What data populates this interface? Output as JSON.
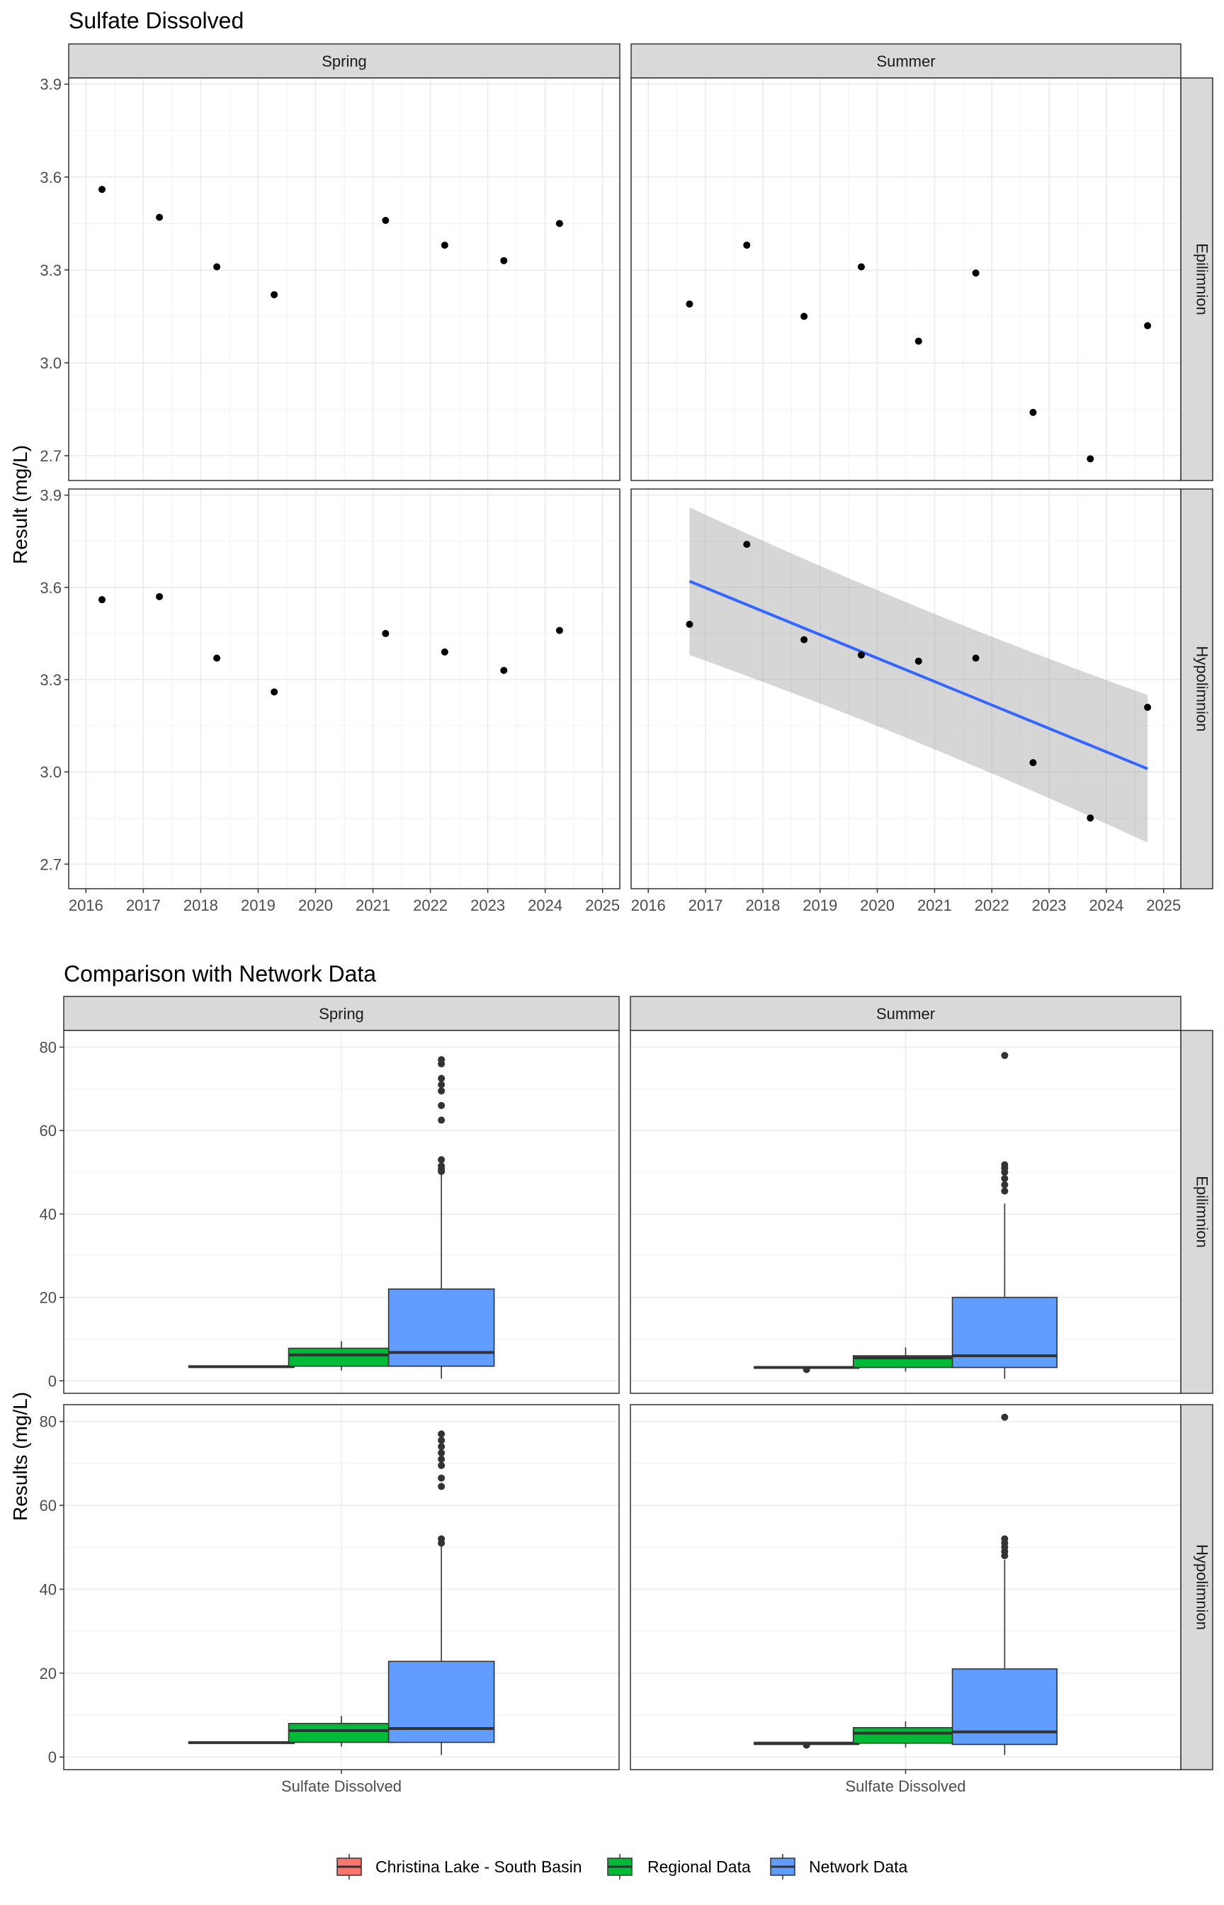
{
  "chart_data": [
    {
      "type": "scatter",
      "title": "Sulfate Dissolved",
      "ylabel": "Result (mg/L)",
      "xlabel": "",
      "ylim": [
        2.62,
        3.92
      ],
      "yticks": [
        2.7,
        3.0,
        3.3,
        3.6,
        3.9
      ],
      "ytick_labels": [
        "2.7",
        "3.0",
        "3.3",
        "3.6",
        "3.9"
      ],
      "xlim": [
        2015.7,
        2025.3
      ],
      "xticks": [
        2016,
        2017,
        2018,
        2019,
        2020,
        2021,
        2022,
        2023,
        2024,
        2025
      ],
      "xtick_labels": [
        "2016",
        "2017",
        "2018",
        "2019",
        "2020",
        "2021",
        "2022",
        "2023",
        "2024",
        "2025"
      ],
      "grid": true,
      "columns": [
        "Spring",
        "Summer"
      ],
      "rows": [
        "Epilimnion",
        "Hypolimnion"
      ],
      "panels": [
        {
          "column": "Spring",
          "row": "Epilimnion",
          "x": [
            2016.28,
            2017.28,
            2018.28,
            2019.28,
            2021.22,
            2022.25,
            2023.28,
            2024.25
          ],
          "y": [
            3.56,
            3.47,
            3.31,
            3.22,
            3.46,
            3.38,
            3.33,
            3.45
          ]
        },
        {
          "column": "Summer",
          "row": "Epilimnion",
          "x": [
            2016.72,
            2017.72,
            2018.72,
            2019.72,
            2020.72,
            2021.72,
            2022.72,
            2023.72,
            2024.72
          ],
          "y": [
            3.19,
            3.38,
            3.15,
            3.31,
            3.07,
            3.29,
            2.84,
            2.69,
            3.12
          ]
        },
        {
          "column": "Spring",
          "row": "Hypolimnion",
          "x": [
            2016.28,
            2017.28,
            2018.28,
            2019.28,
            2021.22,
            2022.25,
            2023.28,
            2024.25
          ],
          "y": [
            3.56,
            3.57,
            3.37,
            3.26,
            3.45,
            3.39,
            3.33,
            3.46
          ]
        },
        {
          "column": "Summer",
          "row": "Hypolimnion",
          "x": [
            2016.72,
            2017.72,
            2018.72,
            2019.72,
            2020.72,
            2021.72,
            2022.72,
            2023.72,
            2024.72
          ],
          "y": [
            3.48,
            3.74,
            3.43,
            3.38,
            3.36,
            3.37,
            3.03,
            2.85,
            3.21
          ],
          "trend": {
            "x": [
              2016.72,
              2024.72
            ],
            "y": [
              3.62,
              3.01
            ],
            "ci_lower": [
              3.38,
              2.77
            ],
            "ci_upper": [
              3.86,
              3.25
            ],
            "color": "#3366ff"
          }
        }
      ]
    },
    {
      "type": "box",
      "title": "Comparison with Network Data",
      "ylabel": "Results (mg/L)",
      "ylim": [
        -3,
        84
      ],
      "yticks": [
        0,
        20,
        40,
        60,
        80
      ],
      "ytick_labels": [
        "0",
        "20",
        "40",
        "60",
        "80"
      ],
      "categories": [
        "Sulfate Dissolved"
      ],
      "grid": true,
      "legend_position": "bottom",
      "columns": [
        "Spring",
        "Summer"
      ],
      "rows": [
        "Epilimnion",
        "Hypolimnion"
      ],
      "legend": [
        {
          "label": "Christina Lake - South Basin",
          "color": "#f8766d"
        },
        {
          "label": "Regional Data",
          "color": "#00ba38"
        },
        {
          "label": "Network Data",
          "color": "#619cff"
        }
      ],
      "panels": [
        {
          "column": "Spring",
          "row": "Epilimnion",
          "boxes": [
            {
              "group": "Christina Lake - South Basin",
              "q1": 3.3,
              "median": 3.4,
              "q3": 3.5,
              "whisker_low": 3.3,
              "whisker_high": 3.5,
              "outliers": []
            },
            {
              "group": "Regional Data",
              "q1": 3.5,
              "median": 6.2,
              "q3": 7.8,
              "whisker_low": 2.5,
              "whisker_high": 9.5,
              "outliers": []
            },
            {
              "group": "Network Data",
              "q1": 3.5,
              "median": 6.8,
              "q3": 22,
              "whisker_low": 0.5,
              "whisker_high": 49.5,
              "outliers": [
                50.2,
                50.8,
                51.5,
                53,
                62.5,
                66,
                69.5,
                71,
                72.5,
                76,
                77
              ]
            }
          ]
        },
        {
          "column": "Summer",
          "row": "Epilimnion",
          "boxes": [
            {
              "group": "Christina Lake - South Basin",
              "q1": 3.0,
              "median": 3.2,
              "q3": 3.35,
              "whisker_low": 3.0,
              "whisker_high": 3.35,
              "outliers": [
                2.7
              ]
            },
            {
              "group": "Regional Data",
              "q1": 3.2,
              "median": 5.5,
              "q3": 6.0,
              "whisker_low": 2.2,
              "whisker_high": 8.0,
              "outliers": []
            },
            {
              "group": "Network Data",
              "q1": 3.2,
              "median": 6.0,
              "q3": 20,
              "whisker_low": 0.5,
              "whisker_high": 42.5,
              "outliers": [
                45.5,
                47,
                48.5,
                50,
                51,
                51.8,
                78
              ]
            }
          ]
        },
        {
          "column": "Spring",
          "row": "Hypolimnion",
          "boxes": [
            {
              "group": "Christina Lake - South Basin",
              "q1": 3.3,
              "median": 3.45,
              "q3": 3.57,
              "whisker_low": 3.3,
              "whisker_high": 3.57,
              "outliers": []
            },
            {
              "group": "Regional Data",
              "q1": 3.5,
              "median": 6.3,
              "q3": 8.0,
              "whisker_low": 2.5,
              "whisker_high": 9.8,
              "outliers": []
            },
            {
              "group": "Network Data",
              "q1": 3.5,
              "median": 6.8,
              "q3": 22.8,
              "whisker_low": 0.5,
              "whisker_high": 50.5,
              "outliers": [
                51,
                52,
                64.5,
                66.5,
                69.5,
                71,
                72.5,
                74,
                75.5,
                77
              ]
            }
          ]
        },
        {
          "column": "Summer",
          "row": "Hypolimnion",
          "boxes": [
            {
              "group": "Christina Lake - South Basin",
              "q1": 3.0,
              "median": 3.3,
              "q3": 3.5,
              "whisker_low": 3.0,
              "whisker_high": 3.5,
              "outliers": [
                2.85
              ]
            },
            {
              "group": "Regional Data",
              "q1": 3.3,
              "median": 5.7,
              "q3": 7.0,
              "whisker_low": 2.3,
              "whisker_high": 8.5,
              "outliers": []
            },
            {
              "group": "Network Data",
              "q1": 3.0,
              "median": 6.0,
              "q3": 21,
              "whisker_low": 0.5,
              "whisker_high": 47,
              "outliers": [
                48,
                49,
                50,
                51,
                52,
                81
              ]
            }
          ]
        }
      ]
    }
  ]
}
